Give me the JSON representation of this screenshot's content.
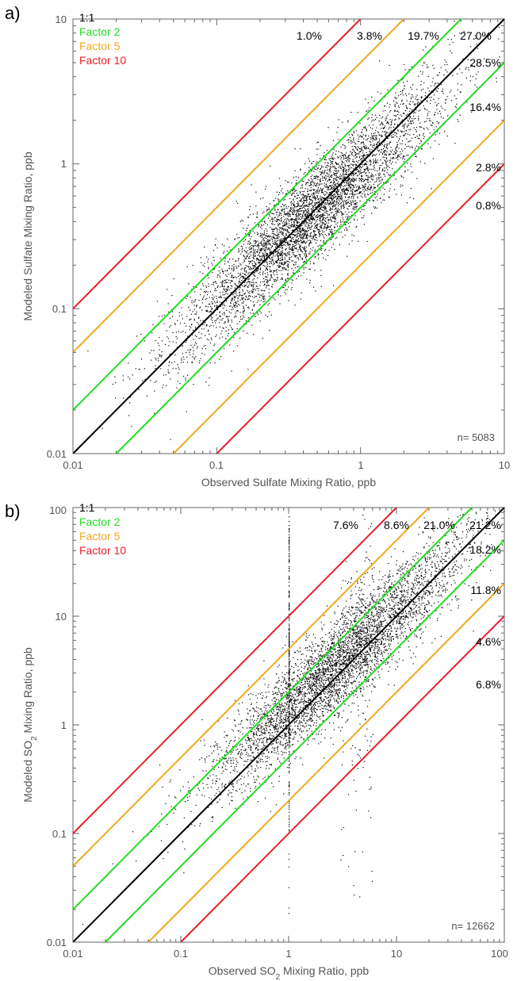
{
  "colors": {
    "one_to_one": "#000000",
    "factor2": "#22dd22",
    "factor5": "#f0a820",
    "factor10": "#e8202a",
    "points": "#000000",
    "axis": "#666666"
  },
  "chart_data": [
    {
      "type": "scatter",
      "panel_label": "a)",
      "xlabel": "Observed Sulfate Mixing Ratio, ppb",
      "ylabel": "Modeled Sulfate Mixing Ratio, ppb",
      "xscale": "log",
      "yscale": "log",
      "xlim": [
        0.01,
        10
      ],
      "ylim": [
        0.01,
        10
      ],
      "x_ticks": [
        "0.01",
        "0.1",
        "1",
        "10"
      ],
      "y_ticks": [
        "0.01",
        "0.1",
        "1",
        "10"
      ],
      "legend": [
        "1:1",
        "Factor 2",
        "Factor 5",
        "Factor 10"
      ],
      "legend_placement": "top-left",
      "n_label": "n= 5083",
      "reference_lines": [
        {
          "legend": "Factor 10",
          "slope": 10
        },
        {
          "legend": "Factor 5",
          "slope": 5
        },
        {
          "legend": "Factor 2",
          "slope": 2
        },
        {
          "legend": "1:1",
          "slope": 1
        },
        {
          "legend": "Factor 2",
          "slope": 0.5
        },
        {
          "legend": "Factor 5",
          "slope": 0.2
        },
        {
          "legend": "Factor 10",
          "slope": 0.1
        }
      ],
      "band_percentages": [
        {
          "label": "1.0%",
          "region": "above factor 10"
        },
        {
          "label": "3.8%",
          "region": "factor 5-10 above"
        },
        {
          "label": "19.7%",
          "region": "factor 2-5 above"
        },
        {
          "label": "27.0%",
          "region": "1:1 to factor 2 above"
        },
        {
          "label": "28.5%",
          "region": "1:1 to factor 2 below"
        },
        {
          "label": "16.4%",
          "region": "factor 2-5 below"
        },
        {
          "label": "2.8%",
          "region": "factor 5-10 below"
        },
        {
          "label": "0.8%",
          "region": "below factor 10"
        }
      ],
      "points_summary": {
        "count": 5083,
        "log10_x_center": -0.35,
        "log10_y_center": -0.35,
        "log10_spread": 0.42
      }
    },
    {
      "type": "scatter",
      "panel_label": "b)",
      "xlabel_pre": "Observed SO",
      "xlabel_sub": "2",
      "xlabel_post": " Mixing Ratio, ppb",
      "ylabel_pre": "Modeled SO",
      "ylabel_sub": "2",
      "ylabel_post": " Mixing Ratio, ppb",
      "xscale": "log",
      "yscale": "log",
      "xlim": [
        0.01,
        100
      ],
      "ylim": [
        0.01,
        100
      ],
      "x_ticks": [
        "0.01",
        "0.1",
        "1",
        "10",
        "100"
      ],
      "y_ticks": [
        "0.01",
        "0.1",
        "1",
        "10",
        "100"
      ],
      "legend": [
        "1:1",
        "Factor 2",
        "Factor 5",
        "Factor 10"
      ],
      "legend_placement": "top-left",
      "n_label": "n= 12662",
      "reference_lines": [
        {
          "legend": "Factor 10",
          "slope": 10
        },
        {
          "legend": "Factor 5",
          "slope": 5
        },
        {
          "legend": "Factor 2",
          "slope": 2
        },
        {
          "legend": "1:1",
          "slope": 1
        },
        {
          "legend": "Factor 2",
          "slope": 0.5
        },
        {
          "legend": "Factor 5",
          "slope": 0.2
        },
        {
          "legend": "Factor 10",
          "slope": 0.1
        }
      ],
      "band_percentages": [
        {
          "label": "7.6%",
          "region": "above factor 10"
        },
        {
          "label": "8.6%",
          "region": "factor 5-10 above"
        },
        {
          "label": "21.0%",
          "region": "factor 2-5 above"
        },
        {
          "label": "21.2%",
          "region": "1:1 to factor 2 above"
        },
        {
          "label": "18.2%",
          "region": "1:1 to factor 2 below"
        },
        {
          "label": "11.8%",
          "region": "factor 2-5 below"
        },
        {
          "label": "4.6%",
          "region": "factor 5-10 below"
        },
        {
          "label": "6.8%",
          "region": "below factor 10"
        }
      ],
      "points_summary": {
        "count": 12662,
        "log10_x_center": 0.45,
        "log10_y_center": 0.55,
        "log10_spread": 0.55
      }
    }
  ]
}
